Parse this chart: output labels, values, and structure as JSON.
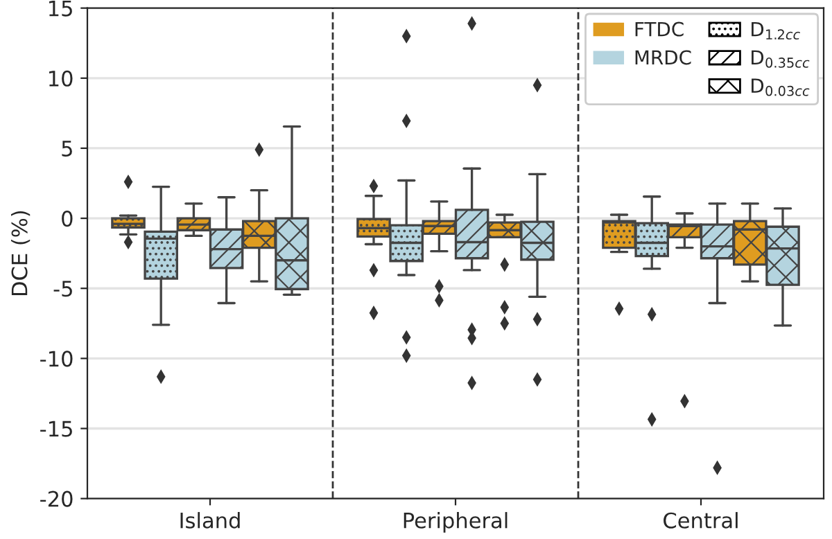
{
  "chart_data": {
    "type": "box",
    "ylabel": "DCE (%)",
    "categories": [
      "Island",
      "Peripheral",
      "Central"
    ],
    "ylim": [
      -20,
      15
    ],
    "yticks": [
      -20,
      -15,
      -10,
      -5,
      0,
      5,
      10,
      15
    ],
    "grid": "y",
    "legend": "top right",
    "annotations": [
      "D$_{1.2cc}$",
      "D$_{0.35cc}$",
      "D$_{0.03cc}$"
    ],
    "series": [
      {
        "name": "FTDC",
        "color": "#df9c20",
        "boxes": [
          {
            "low": -1.15,
            "q1": -0.65,
            "median": -0.4,
            "q3": 0,
            "high": 0.2,
            "outliers": [
              2.6,
              -1.7
            ]
          },
          {
            "low": -1.85,
            "q1": -1.3,
            "median": -0.7,
            "q3": -0.05,
            "high": 1.6,
            "outliers": [
              2.3,
              -3.7,
              -6.75
            ]
          },
          {
            "low": -2.4,
            "q1": -2.1,
            "median": -0.3,
            "q3": -0.2,
            "high": 0.25,
            "outliers": [
              -6.45
            ]
          }
        ]
      },
      {
        "name": "MRDC",
        "color": "#b4d4df",
        "boxes": [
          {
            "low": -7.6,
            "q1": -4.3,
            "median": -1.45,
            "q3": -0.95,
            "high": 2.25,
            "outliers": [
              -11.3
            ]
          },
          {
            "low": -4.05,
            "q1": -3.05,
            "median": -1.75,
            "q3": -0.5,
            "high": 2.7,
            "outliers": [
              13.0,
              6.95,
              -8.5,
              -9.8
            ]
          },
          {
            "low": -3.6,
            "q1": -2.7,
            "median": -1.75,
            "q3": -0.35,
            "high": 1.55,
            "outliers": [
              -6.85,
              -14.35
            ]
          }
        ]
      },
      {
        "color": "#df9c20",
        "boxes": [
          {
            "low": -1.25,
            "q1": -0.85,
            "median": -0.45,
            "q3": 0,
            "high": 1.05
          },
          {
            "low": -2.35,
            "q1": -1.1,
            "median": -0.55,
            "q3": -0.2,
            "high": 1.2,
            "outliers": [
              -4.85,
              -5.85
            ]
          },
          {
            "low": -2.1,
            "q1": -1.35,
            "median": -0.55,
            "q3": -0.45,
            "high": 0.35,
            "outliers": [
              -13.05
            ]
          }
        ]
      },
      {
        "color": "#b4d4df",
        "boxes": [
          {
            "low": -6.05,
            "q1": -3.55,
            "median": -2.2,
            "q3": -0.8,
            "high": 1.5
          },
          {
            "low": -3.7,
            "q1": -2.85,
            "median": -1.7,
            "q3": 0.6,
            "high": 3.55,
            "outliers": [
              13.9,
              -7.95,
              -8.55,
              -11.75
            ]
          },
          {
            "low": -6.05,
            "q1": -2.85,
            "median": -2.0,
            "q3": -0.45,
            "high": 1.05,
            "outliers": [
              -17.8
            ]
          }
        ]
      },
      {
        "color": "#df9c20",
        "boxes": [
          {
            "low": -4.5,
            "q1": -2.1,
            "median": -1.25,
            "q3": -0.2,
            "high": 2.0,
            "outliers": [
              4.9
            ]
          },
          {
            "low": -1.35,
            "q1": -1.35,
            "median": -0.85,
            "q3": -0.3,
            "high": 0.25,
            "outliers": [
              -3.3,
              -6.35,
              -7.5
            ]
          },
          {
            "low": -4.5,
            "q1": -3.3,
            "median": -0.8,
            "q3": -0.2,
            "high": 1.05
          }
        ]
      },
      {
        "color": "#b4d4df",
        "boxes": [
          {
            "low": -5.45,
            "q1": -5.05,
            "median": -3.0,
            "q3": 0,
            "high": 6.55
          },
          {
            "low": -5.6,
            "q1": -2.95,
            "median": -1.75,
            "q3": -0.25,
            "high": 3.15,
            "outliers": [
              9.5,
              -7.2,
              -11.5
            ]
          },
          {
            "low": -7.65,
            "q1": -4.75,
            "median": -2.15,
            "q3": -0.6,
            "high": 0.7
          }
        ]
      }
    ]
  }
}
